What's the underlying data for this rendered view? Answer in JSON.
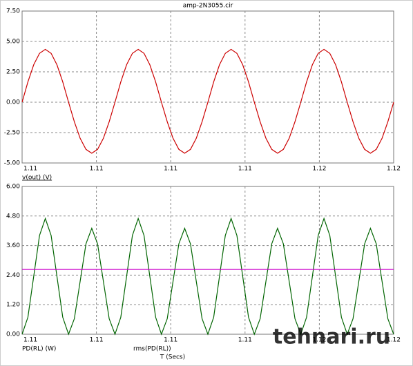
{
  "chart_data": [
    {
      "type": "line",
      "title": "amp-2N3055.cir",
      "x": [
        1.112,
        1.1120625,
        1.112125,
        1.1121875,
        1.11225,
        1.1123125,
        1.112375,
        1.1124375,
        1.1125,
        1.1125625,
        1.112625,
        1.1126875,
        1.11275,
        1.1128125,
        1.112875,
        1.1129375,
        1.113,
        1.1130625,
        1.113125,
        1.1131875,
        1.11325,
        1.1133125,
        1.113375,
        1.1134375,
        1.1135,
        1.1135625,
        1.113625,
        1.1136875,
        1.11375,
        1.1138125,
        1.113875,
        1.1139375,
        1.114,
        1.1140625,
        1.114125,
        1.1141875,
        1.11425,
        1.1143125,
        1.114375,
        1.1144375,
        1.1145,
        1.1145625,
        1.114625,
        1.1146875,
        1.11475,
        1.1148125,
        1.114875,
        1.1149375,
        1.115,
        1.1150625,
        1.115125,
        1.1151875,
        1.11525,
        1.1153125,
        1.115375,
        1.1154375,
        1.1155,
        1.1155625,
        1.115625,
        1.1156875,
        1.11575,
        1.1158125,
        1.115875,
        1.1159375,
        1.116
      ],
      "series": [
        {
          "name": "v(out) (V)",
          "color": "#cc0000",
          "values": [
            0,
            1.67,
            3.08,
            4.02,
            4.35,
            4.02,
            3.08,
            1.67,
            0,
            -1.61,
            -2.97,
            -3.88,
            -4.2,
            -3.88,
            -2.97,
            -1.61,
            0,
            1.67,
            3.08,
            4.02,
            4.35,
            4.02,
            3.08,
            1.67,
            0,
            -1.61,
            -2.97,
            -3.88,
            -4.2,
            -3.88,
            -2.97,
            -1.61,
            0,
            1.67,
            3.08,
            4.02,
            4.35,
            4.02,
            3.08,
            1.67,
            0,
            -1.61,
            -2.97,
            -3.88,
            -4.2,
            -3.88,
            -2.97,
            -1.61,
            0,
            1.67,
            3.08,
            4.02,
            4.35,
            4.02,
            3.08,
            1.67,
            0,
            -1.61,
            -2.97,
            -3.88,
            -4.2,
            -3.88,
            -2.97,
            -1.61,
            0
          ]
        }
      ],
      "xlim": [
        1.112,
        1.116
      ],
      "xticks": [
        {
          "value": 1.112,
          "label": "1.11"
        },
        {
          "value": 1.1128,
          "label": "1.11"
        },
        {
          "value": 1.1136,
          "label": "1.11"
        },
        {
          "value": 1.1144,
          "label": "1.11"
        },
        {
          "value": 1.1152,
          "label": "1.12"
        },
        {
          "value": 1.116,
          "label": "1.12"
        }
      ],
      "ylim": [
        -5,
        7.5
      ],
      "yticks": [
        {
          "value": -5,
          "label": "-5.00"
        },
        {
          "value": -2.5,
          "label": "-2.50"
        },
        {
          "value": 0,
          "label": "0.00"
        },
        {
          "value": 2.5,
          "label": "2.50"
        },
        {
          "value": 5,
          "label": "5.00"
        },
        {
          "value": 7.5,
          "label": "7.50"
        }
      ],
      "grid": true
    },
    {
      "type": "line",
      "x_label": "T (Secs)",
      "watermark": "tehnari.ru",
      "x": [
        1.112,
        1.1120625,
        1.112125,
        1.1121875,
        1.11225,
        1.1123125,
        1.112375,
        1.1124375,
        1.1125,
        1.1125625,
        1.112625,
        1.1126875,
        1.11275,
        1.1128125,
        1.112875,
        1.1129375,
        1.113,
        1.1130625,
        1.113125,
        1.1131875,
        1.11325,
        1.1133125,
        1.113375,
        1.1134375,
        1.1135,
        1.1135625,
        1.113625,
        1.1136875,
        1.11375,
        1.1138125,
        1.113875,
        1.1139375,
        1.114,
        1.1140625,
        1.114125,
        1.1141875,
        1.11425,
        1.1143125,
        1.114375,
        1.1144375,
        1.1145,
        1.1145625,
        1.114625,
        1.1146875,
        1.11475,
        1.1148125,
        1.114875,
        1.1149375,
        1.115,
        1.1150625,
        1.115125,
        1.1151875,
        1.11525,
        1.1153125,
        1.115375,
        1.1154375,
        1.1155,
        1.1155625,
        1.115625,
        1.1156875,
        1.11575,
        1.1158125,
        1.115875,
        1.1159375,
        1.116
      ],
      "series": [
        {
          "name": "PD(RL) (W)",
          "color": "#006400",
          "values": [
            0,
            0.69,
            2.35,
            4.01,
            4.7,
            4.01,
            2.35,
            0.69,
            0,
            0.63,
            2.15,
            3.67,
            4.3,
            3.67,
            2.15,
            0.63,
            0,
            0.69,
            2.35,
            4.01,
            4.7,
            4.01,
            2.35,
            0.69,
            0,
            0.63,
            2.15,
            3.67,
            4.3,
            3.67,
            2.15,
            0.63,
            0,
            0.69,
            2.35,
            4.01,
            4.7,
            4.01,
            2.35,
            0.69,
            0,
            0.63,
            2.15,
            3.67,
            4.3,
            3.67,
            2.15,
            0.63,
            0,
            0.69,
            2.35,
            4.01,
            4.7,
            4.01,
            2.35,
            0.69,
            0,
            0.63,
            2.15,
            3.67,
            4.3,
            3.67,
            2.15,
            0.63,
            0
          ]
        },
        {
          "name": "rms(PD(RL))",
          "color": "#cc00cc",
          "x": [
            1.112,
            1.116
          ],
          "values": [
            2.63,
            2.63
          ]
        }
      ],
      "xlim": [
        1.112,
        1.116
      ],
      "xticks": [
        {
          "value": 1.112,
          "label": "1.11"
        },
        {
          "value": 1.1128,
          "label": "1.11"
        },
        {
          "value": 1.1136,
          "label": "1.11"
        },
        {
          "value": 1.1144,
          "label": "1.11"
        },
        {
          "value": 1.1152,
          "label": "1.12"
        },
        {
          "value": 1.116,
          "label": "1.12"
        }
      ],
      "ylim": [
        0,
        6
      ],
      "yticks": [
        {
          "value": 0,
          "label": "0.00"
        },
        {
          "value": 1.2,
          "label": "1.20"
        },
        {
          "value": 2.4,
          "label": "2.40"
        },
        {
          "value": 3.6,
          "label": "3.60"
        },
        {
          "value": 4.8,
          "label": "4.80"
        },
        {
          "value": 6,
          "label": "6.00"
        }
      ],
      "grid": true
    }
  ]
}
